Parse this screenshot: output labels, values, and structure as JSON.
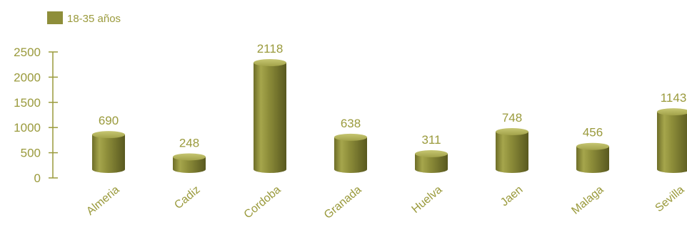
{
  "chart_data": {
    "type": "bar",
    "categories": [
      "Almeria",
      "Cadiz",
      "Cordoba",
      "Granada",
      "Huelva",
      "Jaen",
      "Malaga",
      "Sevilla"
    ],
    "series": [
      {
        "name": "18-35 años",
        "values": [
          690,
          248,
          2118,
          638,
          311,
          748,
          456,
          1143
        ]
      }
    ],
    "ylim": [
      0,
      2500
    ],
    "yticks": [
      0,
      500,
      1000,
      1500,
      2000,
      2500
    ],
    "grid": false,
    "legend": "top-left",
    "style": "3d-cylinder",
    "colors": {
      "bar": "#8e8e3a",
      "text": "#9a9a3c",
      "axis": "#9a9a3c"
    }
  }
}
